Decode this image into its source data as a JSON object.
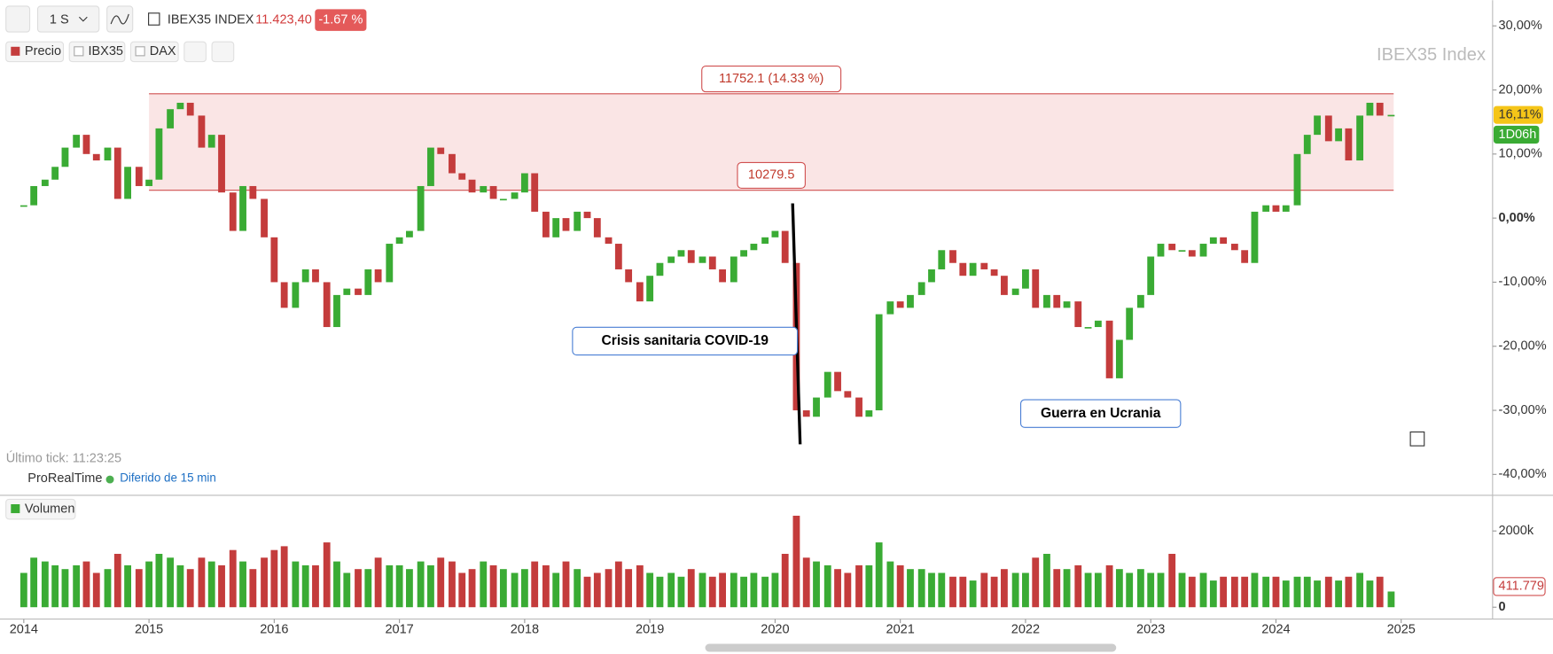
{
  "toolbar": {
    "timeframe": "1 S",
    "symbol": "IBEX35 INDEX",
    "price": "11.423,40",
    "change": "-1.67 %"
  },
  "legend": [
    "Precio",
    "IBX35",
    "DAX"
  ],
  "watermark": "IBEX35 Index",
  "last_tick": "Último tick: 11:23:25",
  "provider": "ProRealTime",
  "delay": "Diferido de 15 min",
  "volume_label": "Volumen",
  "countdown": "1D06h",
  "chart_data": {
    "type": "candlestick",
    "x": [
      2014.0,
      2014.08,
      2014.17,
      2014.25,
      2014.33,
      2014.42,
      2014.5,
      2014.58,
      2014.67,
      2014.75,
      2014.83,
      2014.92,
      2015.0,
      2015.08,
      2015.17,
      2015.25,
      2015.33,
      2015.42,
      2015.5,
      2015.58,
      2015.67,
      2015.75,
      2015.83,
      2015.92,
      2016.0,
      2016.08,
      2016.17,
      2016.25,
      2016.33,
      2016.42,
      2016.5,
      2016.58,
      2016.67,
      2016.75,
      2016.83,
      2016.92,
      2017.0,
      2017.08,
      2017.17,
      2017.25,
      2017.33,
      2017.42,
      2017.5,
      2017.58,
      2017.67,
      2017.75,
      2017.83,
      2017.92,
      2018.0,
      2018.08,
      2018.17,
      2018.25,
      2018.33,
      2018.42,
      2018.5,
      2018.58,
      2018.67,
      2018.75,
      2018.83,
      2018.92,
      2019.0,
      2019.08,
      2019.17,
      2019.25,
      2019.33,
      2019.42,
      2019.5,
      2019.58,
      2019.67,
      2019.75,
      2019.83,
      2019.92,
      2020.0,
      2020.08,
      2020.17,
      2020.25,
      2020.33,
      2020.42,
      2020.5,
      2020.58,
      2020.67,
      2020.75,
      2020.83,
      2020.92,
      2021.0,
      2021.08,
      2021.17,
      2021.25,
      2021.33,
      2021.42,
      2021.5,
      2021.58,
      2021.67,
      2021.75,
      2021.83,
      2021.92,
      2022.0,
      2022.08,
      2022.17,
      2022.25,
      2022.33,
      2022.42,
      2022.5,
      2022.58,
      2022.67,
      2022.75,
      2022.83,
      2022.92,
      2023.0,
      2023.08,
      2023.17,
      2023.25,
      2023.33,
      2023.42,
      2023.5,
      2023.58,
      2023.67,
      2023.75,
      2023.83,
      2023.92,
      2024.0,
      2024.08,
      2024.17,
      2024.25,
      2024.33,
      2024.42,
      2024.5,
      2024.58,
      2024.67,
      2024.75,
      2024.83,
      2024.92
    ],
    "series": [
      {
        "name": "Precio",
        "up_color": "#3aab34",
        "down_color": "#c43c3c",
        "values": [
          2,
          5,
          6,
          8,
          11,
          13,
          10,
          9,
          11,
          3,
          8,
          5,
          6,
          14,
          17,
          18,
          16,
          11,
          13,
          4,
          -2,
          5,
          3,
          -3,
          -10,
          -14,
          -10,
          -8,
          -10,
          -17,
          -12,
          -11,
          -12,
          -8,
          -10,
          -4,
          -3,
          -2,
          5,
          11,
          10,
          7,
          6,
          4,
          5,
          3,
          3,
          4,
          7,
          1,
          -3,
          0,
          -2,
          1,
          0,
          -3,
          -4,
          -8,
          -10,
          -13,
          -9,
          -7,
          -6,
          -5,
          -7,
          -6,
          -8,
          -10,
          -6,
          -5,
          -4,
          -3,
          -2,
          -7,
          -30,
          -31,
          -28,
          -24,
          -27,
          -28,
          -31,
          -30,
          -15,
          -13,
          -14,
          -12,
          -10,
          -8,
          -5,
          -7,
          -9,
          -7,
          -8,
          -9,
          -12,
          -11,
          -8,
          -14,
          -12,
          -14,
          -13,
          -17,
          -17,
          -16,
          -25,
          -19,
          -14,
          -12,
          -6,
          -4,
          -5,
          -5,
          -6,
          -4,
          -3,
          -4,
          -5,
          -7,
          1,
          2,
          1,
          2,
          10,
          13,
          16,
          12,
          14,
          9,
          16,
          18,
          16,
          16.11
        ]
      },
      {
        "name": "Volumen",
        "values": [
          900000,
          1300000,
          1200000,
          1100000,
          1000000,
          1100000,
          1200000,
          900000,
          1000000,
          1400000,
          1100000,
          1000000,
          1200000,
          1400000,
          1300000,
          1100000,
          1000000,
          1300000,
          1200000,
          1100000,
          1500000,
          1200000,
          1000000,
          1300000,
          1500000,
          1600000,
          1200000,
          1100000,
          1100000,
          1700000,
          1200000,
          900000,
          1000000,
          1000000,
          1300000,
          1100000,
          1100000,
          1000000,
          1200000,
          1100000,
          1300000,
          1200000,
          900000,
          1000000,
          1200000,
          1100000,
          1000000,
          900000,
          1000000,
          1200000,
          1100000,
          900000,
          1200000,
          1000000,
          800000,
          900000,
          1000000,
          1200000,
          1000000,
          1100000,
          900000,
          800000,
          900000,
          800000,
          1000000,
          900000,
          800000,
          900000,
          900000,
          800000,
          900000,
          800000,
          900000,
          1400000,
          2400000,
          1300000,
          1200000,
          1100000,
          1000000,
          900000,
          1100000,
          1100000,
          1700000,
          1200000,
          1100000,
          1000000,
          1000000,
          900000,
          900000,
          800000,
          800000,
          700000,
          900000,
          800000,
          1000000,
          900000,
          900000,
          1300000,
          1400000,
          1000000,
          1000000,
          1100000,
          900000,
          900000,
          1100000,
          1000000,
          900000,
          1000000,
          900000,
          900000,
          1400000,
          900000,
          800000,
          900000,
          700000,
          800000,
          800000,
          800000,
          900000,
          800000,
          800000,
          700000,
          800000,
          800000,
          700000,
          800000,
          700000,
          800000,
          900000,
          700000,
          800000,
          411779
        ],
        "last_label": "411.779"
      }
    ],
    "last_value_label": "16,11%",
    "xlim": [
      2013.81,
      2025.73
    ],
    "xticks": [
      2014,
      2015,
      2016,
      2017,
      2018,
      2019,
      2020,
      2021,
      2022,
      2023,
      2024,
      2025
    ],
    "ylim": [
      -42.8,
      34
    ],
    "yticks": [
      {
        "value": 30,
        "label": "30,00%"
      },
      {
        "value": 20,
        "label": "20,00%"
      },
      {
        "value": 10,
        "label": "10,00%"
      },
      {
        "value": 0,
        "label": "0,00%"
      },
      {
        "value": -10,
        "label": "-10,00%"
      },
      {
        "value": -20,
        "label": "-20,00%"
      },
      {
        "value": -30,
        "label": "-30,00%"
      },
      {
        "value": -40,
        "label": "-40,00%"
      }
    ],
    "vlim": [
      0,
      2857000
    ],
    "vticks": [
      {
        "value": 2000000,
        "label": "2000k"
      },
      0
    ],
    "zone": {
      "x": [
        2015.0,
        2024.94
      ],
      "y": [
        4.35,
        19.4
      ],
      "labels": [
        "11752.1 (14.33 %)",
        "10279.5"
      ]
    },
    "annotations": [
      {
        "text": "Crisis sanitaria COVID-19",
        "x": 2019.28,
        "y": -19.2
      },
      {
        "text": "Guerra en Ucrania",
        "x": 2022.6,
        "y": -30.5
      }
    ],
    "trend_line": {
      "x": [
        2020.14,
        2020.2
      ],
      "y": [
        2.3,
        -35.3
      ]
    }
  }
}
